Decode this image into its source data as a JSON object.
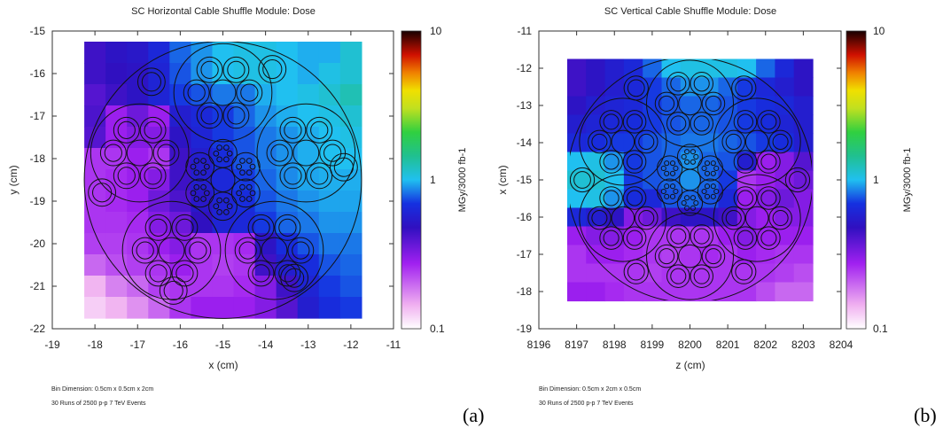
{
  "chart_data": [
    {
      "type": "heatmap",
      "title": "SC Horizontal Cable Shuffle Module: Dose",
      "xlabel": "x (cm)",
      "ylabel": "y (cm)",
      "xlim": [
        -19,
        -11
      ],
      "ylim": [
        -22,
        -15
      ],
      "x_ticks": [
        "-19",
        "-18",
        "-17",
        "-16",
        "-15",
        "-14",
        "-13",
        "-12",
        "-11"
      ],
      "y_ticks": [
        "-15",
        "-16",
        "-17",
        "-18",
        "-19",
        "-20",
        "-21",
        "-22"
      ],
      "colorbar_label": "MGy/3000 fb-1",
      "colorbar_scale": "log",
      "colorbar_range": [
        0.1,
        10
      ],
      "colorbar_ticks": [
        "10",
        "1",
        "0.1"
      ],
      "bin_note": "Bin Dimension: 0.5cm x 0.5cm x 2cm",
      "runs_note": "30 Runs of 2500 p-p 7 TeV Events",
      "panel_label": "(a)",
      "data_extent_x": [
        -18.25,
        -11.75
      ],
      "data_extent_y": [
        -21.75,
        -15.25
      ],
      "bin_size": 0.5,
      "dose_log10_grid_top_to_bottom": [
        [
          -0.35,
          -0.3,
          -0.28,
          -0.2,
          -0.1,
          -0.05,
          0.0,
          0.02,
          0.02,
          0.0,
          -0.02,
          -0.02,
          0.05
        ],
        [
          -0.35,
          -0.32,
          -0.3,
          -0.22,
          -0.12,
          -0.05,
          0.0,
          0.02,
          0.02,
          0.0,
          -0.02,
          0.02,
          0.05
        ],
        [
          -0.4,
          -0.35,
          -0.3,
          -0.22,
          -0.15,
          -0.12,
          -0.08,
          -0.08,
          -0.02,
          0.0,
          0.02,
          0.05,
          0.1
        ],
        [
          -0.38,
          -0.55,
          -0.45,
          -0.55,
          -0.25,
          -0.2,
          -0.15,
          -0.1,
          -0.05,
          -0.02,
          0.0,
          0.02,
          0.05
        ],
        [
          -0.4,
          -0.55,
          -0.5,
          -0.5,
          -0.3,
          -0.22,
          -0.15,
          -0.12,
          -0.08,
          -0.05,
          -0.02,
          0.0,
          0.02
        ],
        [
          -0.6,
          -0.6,
          -0.55,
          -0.6,
          -0.35,
          -0.25,
          -0.18,
          -0.12,
          -0.08,
          -0.05,
          -0.02,
          0.0,
          0.0
        ],
        [
          -0.6,
          -0.58,
          -0.55,
          -0.5,
          -0.35,
          -0.25,
          -0.2,
          -0.15,
          -0.1,
          -0.06,
          -0.03,
          -0.02,
          -0.02
        ],
        [
          -0.6,
          -0.58,
          -0.55,
          -0.45,
          -0.38,
          -0.28,
          -0.22,
          -0.18,
          -0.12,
          -0.08,
          -0.05,
          -0.03,
          -0.03
        ],
        [
          -0.6,
          -0.6,
          -0.58,
          -0.5,
          -0.45,
          -0.32,
          -0.22,
          -0.2,
          -0.15,
          -0.1,
          -0.08,
          -0.05,
          -0.05
        ],
        [
          -0.62,
          -0.62,
          -0.6,
          -0.55,
          -0.5,
          -0.6,
          -0.6,
          -0.58,
          -0.3,
          -0.18,
          -0.12,
          -0.08,
          -0.08
        ],
        [
          -0.7,
          -0.65,
          -0.62,
          -0.6,
          -0.55,
          -0.6,
          -0.62,
          -0.6,
          -0.35,
          -0.25,
          -0.18,
          -0.12,
          -0.1
        ],
        [
          -0.85,
          -0.75,
          -0.7,
          -0.62,
          -0.6,
          -0.6,
          -0.6,
          -0.58,
          -0.5,
          -0.35,
          -0.22,
          -0.15,
          -0.12
        ],
        [
          -0.9,
          -0.85,
          -0.78,
          -0.7,
          -0.6,
          -0.55,
          -0.55,
          -0.55,
          -0.5,
          -0.4,
          -0.25,
          -0.18,
          -0.15
        ]
      ]
    },
    {
      "type": "heatmap",
      "title": "SC Vertical Cable Shuffle Module: Dose",
      "xlabel": "z (cm)",
      "ylabel": "x (cm)",
      "xlim": [
        8196,
        8204
      ],
      "ylim": [
        -19,
        -11
      ],
      "x_ticks": [
        "8196",
        "8197",
        "8198",
        "8199",
        "8200",
        "8201",
        "8202",
        "8203",
        "8204"
      ],
      "y_ticks": [
        "-11",
        "-12",
        "-13",
        "-14",
        "-15",
        "-16",
        "-17",
        "-18",
        "-19"
      ],
      "colorbar_label": "MGy/3000 fb-1",
      "colorbar_scale": "log",
      "colorbar_range": [
        0.1,
        10
      ],
      "colorbar_ticks": [
        "10",
        "1",
        "0.1"
      ],
      "bin_note": "Bin Dimension: 0.5cm x 2cm x 0.5cm",
      "runs_note": "30 Runs of 2500 p-p 7 TeV Events",
      "panel_label": "(b)",
      "data_extent_x": [
        8196.75,
        8203.25
      ],
      "data_extent_y": [
        -18.25,
        -11.75
      ],
      "bin_size": 0.5,
      "dose_log10_grid_top_to_bottom": [
        [
          -0.35,
          -0.3,
          -0.25,
          -0.2,
          -0.1,
          0.0,
          0.02,
          0.02,
          0.02,
          0.0,
          -0.1,
          -0.2,
          -0.3
        ],
        [
          -0.35,
          -0.3,
          -0.25,
          -0.2,
          -0.15,
          -0.1,
          -0.05,
          -0.05,
          -0.1,
          -0.15,
          -0.2,
          -0.25,
          -0.3
        ],
        [
          -0.3,
          -0.25,
          -0.22,
          -0.2,
          -0.15,
          -0.12,
          -0.1,
          -0.1,
          -0.12,
          -0.15,
          -0.18,
          -0.2,
          -0.25
        ],
        [
          -0.25,
          -0.22,
          -0.2,
          -0.18,
          -0.15,
          -0.12,
          -0.1,
          -0.1,
          -0.12,
          -0.15,
          -0.18,
          -0.22,
          -0.25
        ],
        [
          -0.2,
          -0.18,
          -0.15,
          -0.15,
          -0.12,
          -0.1,
          -0.08,
          -0.08,
          -0.1,
          -0.12,
          -0.15,
          -0.18,
          -0.25
        ],
        [
          0.0,
          0.02,
          -0.05,
          -0.15,
          -0.12,
          -0.1,
          -0.05,
          -0.1,
          -0.12,
          -0.25,
          -0.55,
          -0.5,
          -0.4
        ],
        [
          0.05,
          0.05,
          0.0,
          -0.15,
          -0.12,
          -0.1,
          -0.05,
          -0.1,
          -0.15,
          -0.6,
          -0.55,
          -0.5,
          -0.45
        ],
        [
          0.0,
          0.02,
          -0.05,
          -0.18,
          -0.2,
          -0.12,
          -0.1,
          -0.12,
          -0.2,
          -0.55,
          -0.5,
          -0.45,
          -0.5
        ],
        [
          -0.2,
          -0.25,
          -0.3,
          -0.5,
          -0.45,
          -0.35,
          -0.3,
          -0.3,
          -0.35,
          -0.5,
          -0.55,
          -0.5,
          -0.5
        ],
        [
          -0.55,
          -0.5,
          -0.5,
          -0.55,
          -0.6,
          -0.6,
          -0.6,
          -0.6,
          -0.55,
          -0.5,
          -0.55,
          -0.55,
          -0.55
        ],
        [
          -0.6,
          -0.55,
          -0.55,
          -0.58,
          -0.6,
          -0.62,
          -0.6,
          -0.58,
          -0.6,
          -0.55,
          -0.58,
          -0.6,
          -0.6
        ],
        [
          -0.6,
          -0.6,
          -0.6,
          -0.6,
          -0.62,
          -0.6,
          -0.6,
          -0.6,
          -0.6,
          -0.6,
          -0.6,
          -0.62,
          -0.65
        ],
        [
          -0.55,
          -0.55,
          -0.58,
          -0.6,
          -0.6,
          -0.6,
          -0.6,
          -0.6,
          -0.6,
          -0.6,
          -0.65,
          -0.7,
          -0.7
        ]
      ]
    }
  ]
}
